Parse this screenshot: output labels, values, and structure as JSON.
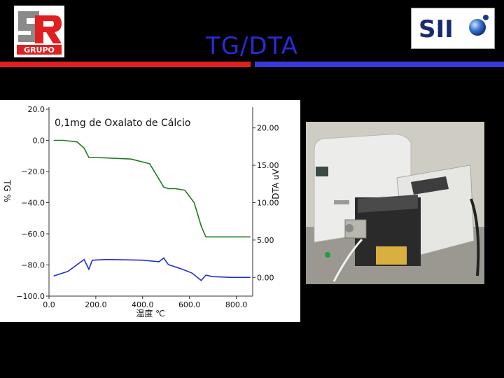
{
  "header": {
    "title": "TG/DTA",
    "logo_left_text": "GRUPO",
    "logo_right_text": "SII"
  },
  "colors": {
    "title": "#2a2ad6",
    "bar_left": "#e02020",
    "bar_right": "#3a3adc",
    "tg_line": "#1f7a1f",
    "dta_line": "#1f2fcc"
  },
  "chart_data": {
    "type": "line",
    "title": "",
    "annotation": "0,1mg de Oxalato de Cálcio",
    "xlabel": "温度 ℃",
    "ylabel_left": "TG %",
    "ylabel_right": "DTA uV",
    "xlim": [
      0,
      870
    ],
    "ylim_left": [
      -100,
      20
    ],
    "ylim_right": [
      -2.5,
      22.5
    ],
    "x_ticks": [
      "0.0",
      "200.0",
      "400.0",
      "600.0",
      "800.0"
    ],
    "y_ticks_left": [
      "20.0",
      "0.0",
      "−20.0",
      "−40.0",
      "−60.0",
      "−80.0",
      "−100.0"
    ],
    "y_ticks_right": [
      "20.00",
      "15.00",
      "10.00",
      "5.00",
      "0.00"
    ],
    "grid": false,
    "series": [
      {
        "axis": "left",
        "x": [
          20,
          60,
          120,
          150,
          170,
          200,
          350,
          430,
          470,
          490,
          510,
          540,
          580,
          620,
          650,
          670,
          700,
          860
        ],
        "y": [
          0,
          0,
          -1,
          -5,
          -11,
          -11,
          -12,
          -15,
          -25,
          -30,
          -31,
          -31,
          -32,
          -40,
          -55,
          -62,
          -62,
          -62
        ]
      },
      {
        "axis": "right",
        "x": [
          20,
          80,
          150,
          170,
          185,
          250,
          400,
          470,
          490,
          510,
          560,
          610,
          650,
          670,
          700,
          780,
          860
        ],
        "y": [
          0.2,
          0.8,
          2.4,
          1.1,
          2.3,
          2.4,
          2.3,
          2.1,
          2.6,
          1.7,
          1.2,
          0.6,
          -0.4,
          0.3,
          0.1,
          0.0,
          0.0
        ]
      }
    ]
  }
}
